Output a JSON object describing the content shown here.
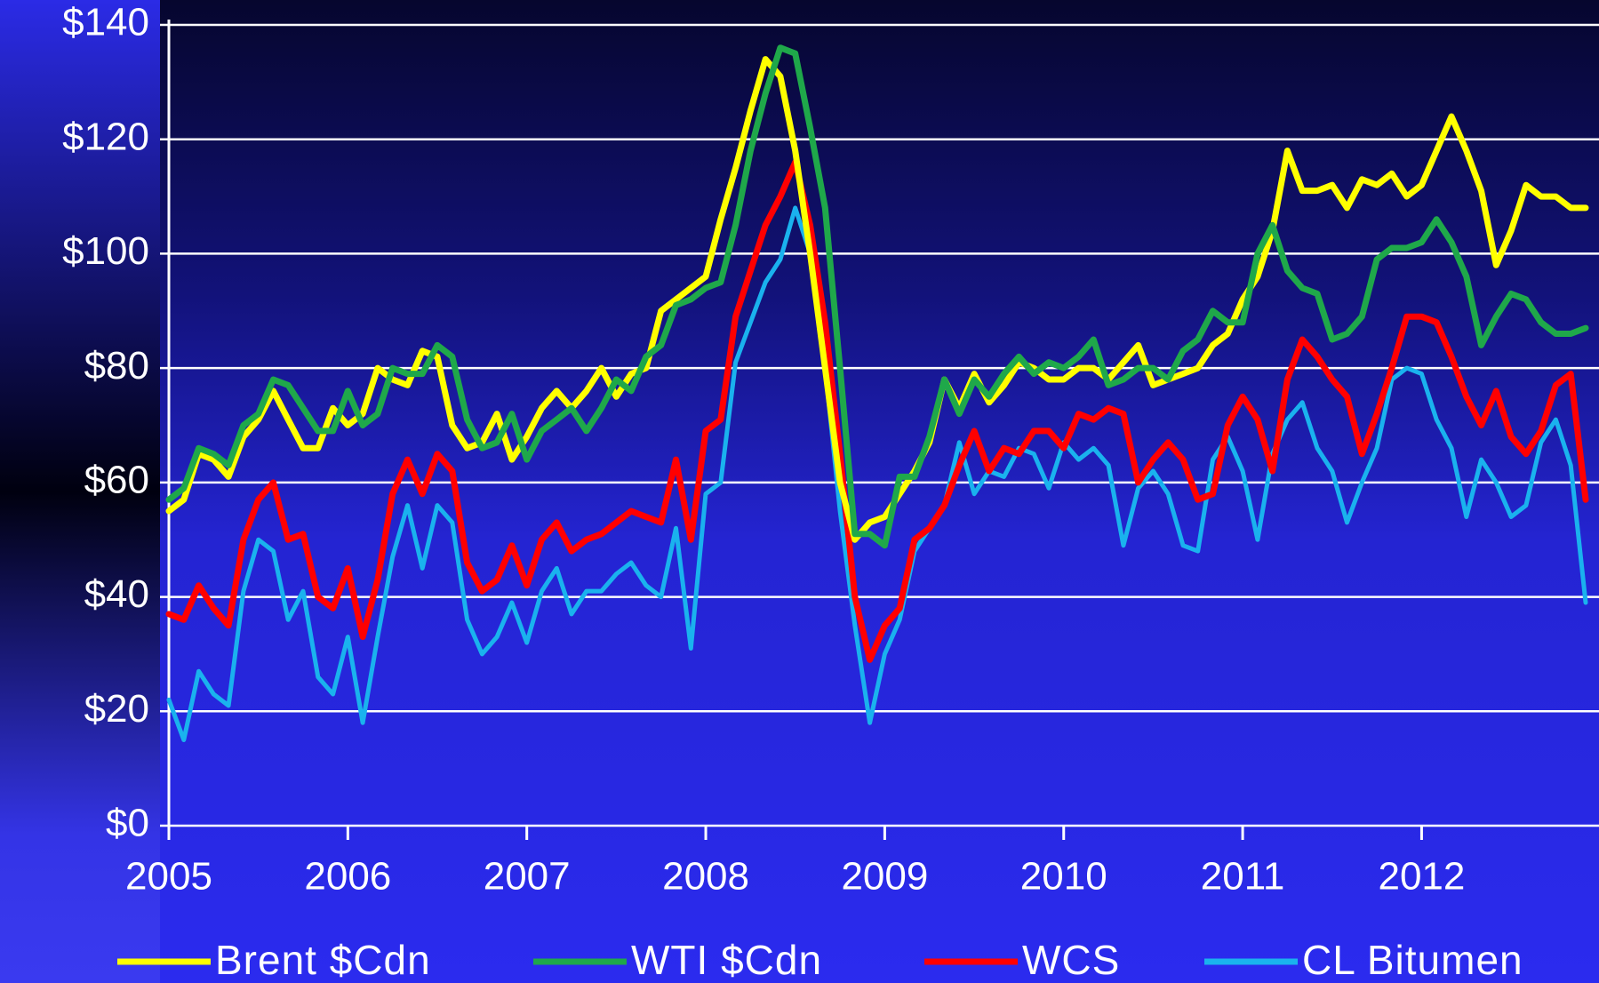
{
  "chart_data": {
    "type": "line",
    "categories": [
      "2005",
      null,
      null,
      null,
      null,
      null,
      null,
      null,
      null,
      null,
      null,
      null,
      "2006",
      null,
      null,
      null,
      null,
      null,
      null,
      null,
      null,
      null,
      null,
      null,
      "2007",
      null,
      null,
      null,
      null,
      null,
      null,
      null,
      null,
      null,
      null,
      null,
      "2008",
      null,
      null,
      null,
      null,
      null,
      null,
      null,
      null,
      null,
      null,
      null,
      "2009",
      null,
      null,
      null,
      null,
      null,
      null,
      null,
      null,
      null,
      null,
      null,
      "2010",
      null,
      null,
      null,
      null,
      null,
      null,
      null,
      null,
      null,
      null,
      null,
      "2011",
      null,
      null,
      null,
      null,
      null,
      null,
      null,
      null,
      null,
      null,
      null,
      "2012",
      null,
      null,
      null,
      null,
      null,
      null,
      null,
      null,
      null,
      null,
      null
    ],
    "series": [
      {
        "name": "Brent $Cdn",
        "color": "#ffff00",
        "values": [
          55,
          57,
          65,
          64,
          61,
          68,
          71,
          76,
          71,
          66,
          66,
          73,
          70,
          72,
          80,
          78,
          77,
          83,
          82,
          70,
          66,
          67,
          72,
          64,
          68,
          73,
          76,
          73,
          76,
          80,
          75,
          79,
          80,
          90,
          92,
          94,
          96,
          106,
          115,
          125,
          134,
          131,
          118,
          100,
          80,
          60,
          50,
          53,
          54,
          58,
          62,
          67,
          78,
          73,
          79,
          74,
          77,
          81,
          80,
          78,
          78,
          80,
          80,
          78,
          81,
          84,
          77,
          78,
          79,
          80,
          84,
          86,
          92,
          96,
          104,
          118,
          111,
          111,
          112,
          108,
          113,
          112,
          114,
          110,
          112,
          118,
          124,
          118,
          111,
          98,
          104,
          112,
          110,
          110,
          108,
          108
        ]
      },
      {
        "name": "WTI $Cdn",
        "color": "#1fa84a",
        "values": [
          57,
          59,
          66,
          65,
          63,
          70,
          72,
          78,
          77,
          73,
          69,
          69,
          76,
          70,
          72,
          80,
          79,
          79,
          84,
          82,
          71,
          66,
          67,
          72,
          64,
          69,
          71,
          73,
          69,
          73,
          78,
          76,
          82,
          84,
          91,
          92,
          94,
          95,
          105,
          118,
          128,
          136,
          135,
          122,
          108,
          80,
          51,
          51,
          49,
          61,
          61,
          68,
          78,
          72,
          78,
          75,
          79,
          82,
          79,
          81,
          80,
          82,
          85,
          77,
          78,
          80,
          80,
          78,
          83,
          85,
          90,
          88,
          88,
          100,
          105,
          97,
          94,
          93,
          85,
          86,
          89,
          99,
          101,
          101,
          102,
          106,
          102,
          96,
          84,
          89,
          93,
          92,
          88,
          86,
          86,
          87
        ]
      },
      {
        "name": "WCS",
        "color": "#ff0000",
        "values": [
          37,
          36,
          42,
          38,
          35,
          50,
          57,
          60,
          50,
          51,
          40,
          38,
          45,
          33,
          43,
          58,
          64,
          58,
          65,
          62,
          46,
          41,
          43,
          49,
          42,
          50,
          53,
          48,
          50,
          51,
          53,
          55,
          54,
          53,
          64,
          50,
          69,
          71,
          89,
          97,
          105,
          110,
          116,
          105,
          88,
          65,
          40,
          29,
          35,
          38,
          50,
          52,
          56,
          63,
          69,
          62,
          66,
          65,
          69,
          69,
          66,
          72,
          71,
          73,
          72,
          60,
          64,
          67,
          64,
          57,
          58,
          70,
          75,
          71,
          62,
          78,
          85,
          82,
          78,
          75,
          65,
          72,
          80,
          89,
          89,
          88,
          82,
          75,
          70,
          76,
          68,
          65,
          69,
          77,
          79,
          57
        ]
      },
      {
        "name": "CL Bitumen",
        "color": "#1ab2ee",
        "values": [
          22,
          15,
          27,
          23,
          21,
          41,
          50,
          48,
          36,
          41,
          26,
          23,
          33,
          18,
          33,
          47,
          56,
          45,
          56,
          53,
          36,
          30,
          33,
          39,
          32,
          41,
          45,
          37,
          41,
          41,
          44,
          46,
          42,
          40,
          52,
          31,
          58,
          60,
          81,
          88,
          95,
          99,
          108,
          100,
          80,
          55,
          35,
          18,
          30,
          36,
          48,
          52,
          56,
          67,
          58,
          62,
          61,
          66,
          65,
          59,
          67,
          64,
          66,
          63,
          49,
          59,
          62,
          58,
          49,
          48,
          64,
          68,
          62,
          50,
          65,
          71,
          74,
          66,
          62,
          53,
          60,
          66,
          78,
          80,
          79,
          71,
          66,
          54,
          64,
          60,
          54,
          56,
          67,
          71,
          63,
          39
        ]
      }
    ],
    "ylim": [
      0,
      140
    ],
    "yticks": [
      {
        "value": 0,
        "label": "$0"
      },
      {
        "value": 20,
        "label": "$20"
      },
      {
        "value": 40,
        "label": "$40"
      },
      {
        "value": 60,
        "label": "$60"
      },
      {
        "value": 80,
        "label": "$80"
      },
      {
        "value": 100,
        "label": "$100"
      },
      {
        "value": 120,
        "label": "$120"
      },
      {
        "value": 140,
        "label": "$140"
      }
    ],
    "grid": true,
    "legend": "bottom"
  }
}
